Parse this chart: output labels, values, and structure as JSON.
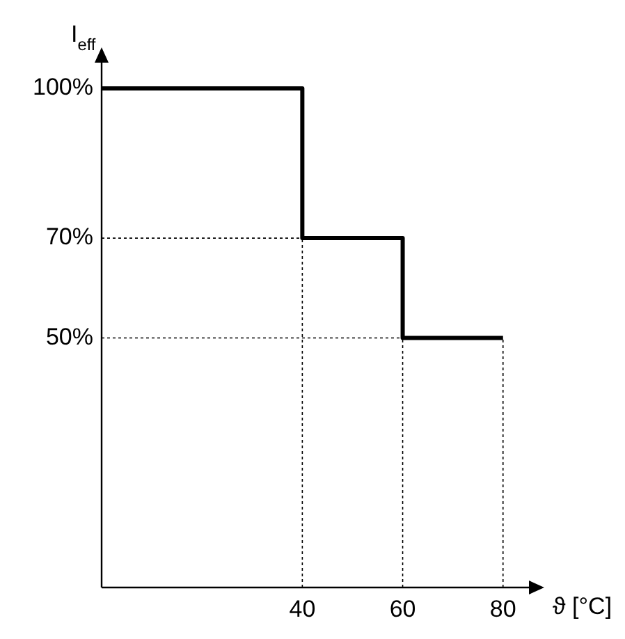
{
  "chart_data": {
    "type": "step",
    "xlabel": "ϑ [°C]",
    "ylabel": "I$_{eff}$",
    "x": [
      0,
      40,
      60,
      80
    ],
    "series": [
      {
        "color": "#000000",
        "values": [
          100,
          70,
          50,
          50
        ]
      }
    ],
    "xlim": [
      0,
      86
    ],
    "ylim": [
      0,
      106
    ],
    "xticks": [
      40,
      60,
      80
    ],
    "yticks": [
      {
        "value": 100,
        "label": "100%"
      },
      {
        "value": 70,
        "label": "70%"
      },
      {
        "value": 50,
        "label": "50%"
      }
    ],
    "ref_lines": [
      {
        "axis": "x",
        "value": 40,
        "line_style": "dotted"
      },
      {
        "axis": "x",
        "value": 60,
        "line_style": "dotted"
      },
      {
        "axis": "x",
        "value": 80,
        "line_style": "dotted"
      },
      {
        "axis": "y",
        "value": 70,
        "line_style": "dotted"
      },
      {
        "axis": "y",
        "value": 50,
        "line_style": "dotted"
      }
    ],
    "grid": false,
    "legend": false,
    "marker": "none",
    "line_style": "solid"
  }
}
